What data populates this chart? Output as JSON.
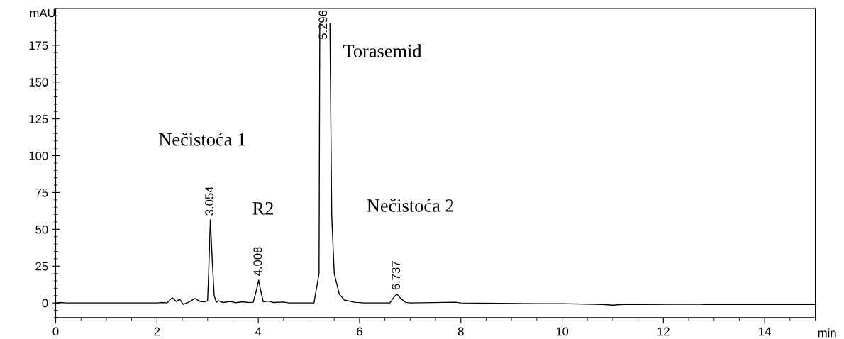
{
  "chart_data": {
    "type": "line",
    "ylabel": "mAU",
    "xlabel": "min",
    "x": [
      0,
      0.1,
      0.2,
      2.0,
      2.1,
      2.2,
      2.3,
      2.38,
      2.45,
      2.52,
      2.62,
      2.75,
      2.85,
      2.95,
      3.0,
      3.02,
      3.054,
      3.09,
      3.13,
      3.17,
      3.22,
      3.3,
      3.45,
      3.55,
      3.7,
      3.8,
      3.9,
      3.96,
      4.008,
      4.05,
      4.1,
      4.2,
      4.3,
      4.5,
      4.6,
      5.1,
      5.2,
      5.215,
      5.22,
      5.296,
      5.41,
      5.415,
      5.45,
      5.5,
      5.6,
      5.7,
      5.9,
      6.1,
      6.6,
      6.68,
      6.737,
      6.8,
      6.9,
      7.0,
      7.9,
      8.0,
      9.5,
      10,
      10.8,
      11.0,
      11.2,
      11.6,
      12.7,
      12.8,
      15
    ],
    "series": [
      {
        "color": "#000000",
        "values": [
          0,
          0.3,
          0,
          0,
          0.3,
          0,
          3.5,
          1,
          2.5,
          -1,
          0.5,
          3,
          1,
          0.8,
          1.5,
          20,
          56.5,
          30,
          5,
          0.5,
          1.5,
          0.3,
          1,
          0.2,
          0.8,
          0.3,
          0.5,
          8,
          15.5,
          8,
          0.8,
          1.2,
          0.3,
          0.6,
          0,
          0,
          20,
          190,
          null,
          null,
          null,
          190,
          60,
          20,
          6,
          2,
          0.5,
          0,
          0,
          4,
          6,
          3.5,
          0.5,
          0,
          0.5,
          0,
          -0.5,
          -0.5,
          -1,
          -1.5,
          -1,
          -1,
          -0.8,
          -1,
          -1
        ]
      }
    ],
    "xlim": [
      0,
      15
    ],
    "xticks": [
      0,
      2,
      4,
      6,
      8,
      10,
      12,
      14
    ],
    "ylim": [
      -10,
      200
    ],
    "yticks": [
      0,
      25,
      50,
      75,
      100,
      125,
      150,
      175
    ],
    "grid": false,
    "legend": false,
    "marker": "none",
    "line_style": "solid",
    "annotations": [
      "Nečistoća 1",
      "R2",
      "Torasemid",
      "Nečistoća 2",
      {
        "text": "3.054",
        "x": 3.054,
        "y": 56.5
      },
      {
        "text": "4.008",
        "x": 4.008,
        "y": 15.5
      },
      "5.296",
      {
        "text": "6.737",
        "x": 6.737,
        "y": 6
      }
    ]
  }
}
